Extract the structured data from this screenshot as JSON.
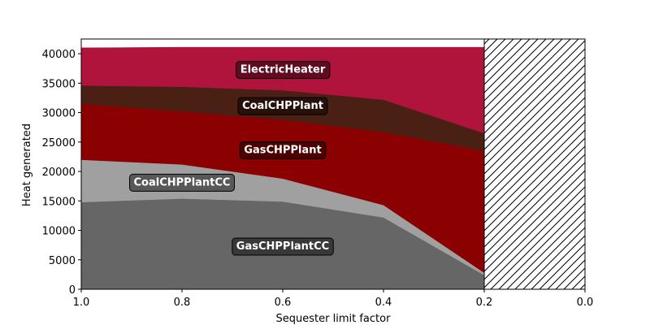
{
  "chart_data": {
    "type": "area",
    "title": "",
    "xlabel": "Sequester limit factor",
    "ylabel": "Heat generated",
    "x": [
      1.0,
      0.8,
      0.6,
      0.4,
      0.2
    ],
    "xlim": [
      1.0,
      0.0
    ],
    "ylim": [
      0,
      42500
    ],
    "xticks": [
      1.0,
      0.8,
      0.6,
      0.4,
      0.2,
      0.0
    ],
    "xtick_labels": [
      "1.0",
      "0.8",
      "0.6",
      "0.4",
      "0.2",
      "0.0"
    ],
    "yticks": [
      0,
      5000,
      10000,
      15000,
      20000,
      25000,
      30000,
      35000,
      40000
    ],
    "ytick_labels": [
      "0",
      "5000",
      "10000",
      "15000",
      "20000",
      "25000",
      "30000",
      "35000",
      "40000"
    ],
    "stacked": true,
    "series": [
      {
        "name": "GasCHPPlantCC",
        "color": "#666666",
        "values": [
          14800,
          15400,
          14900,
          12200,
          2400
        ]
      },
      {
        "name": "CoalCHPPlantCC",
        "color": "#a0a0a0",
        "values": [
          7200,
          5800,
          3900,
          2100,
          400
        ]
      },
      {
        "name": "GasCHPPlant",
        "color": "#8b0000",
        "values": [
          9500,
          9000,
          10000,
          12400,
          20700
        ]
      },
      {
        "name": "CoalCHPPlant",
        "color": "#4a2014",
        "values": [
          3100,
          4200,
          5000,
          5500,
          3000
        ]
      },
      {
        "name": "ElectricHeater",
        "color": "#b0143c",
        "values": [
          6400,
          6700,
          7300,
          8900,
          14600
        ]
      }
    ],
    "label_positions_x": [
      0.6,
      0.8,
      0.6,
      0.6,
      0.6
    ],
    "infeasible_region": {
      "x_from": 0.2,
      "x_to": 0.0,
      "pattern": "hatch"
    },
    "grid": false,
    "legend": "none"
  }
}
